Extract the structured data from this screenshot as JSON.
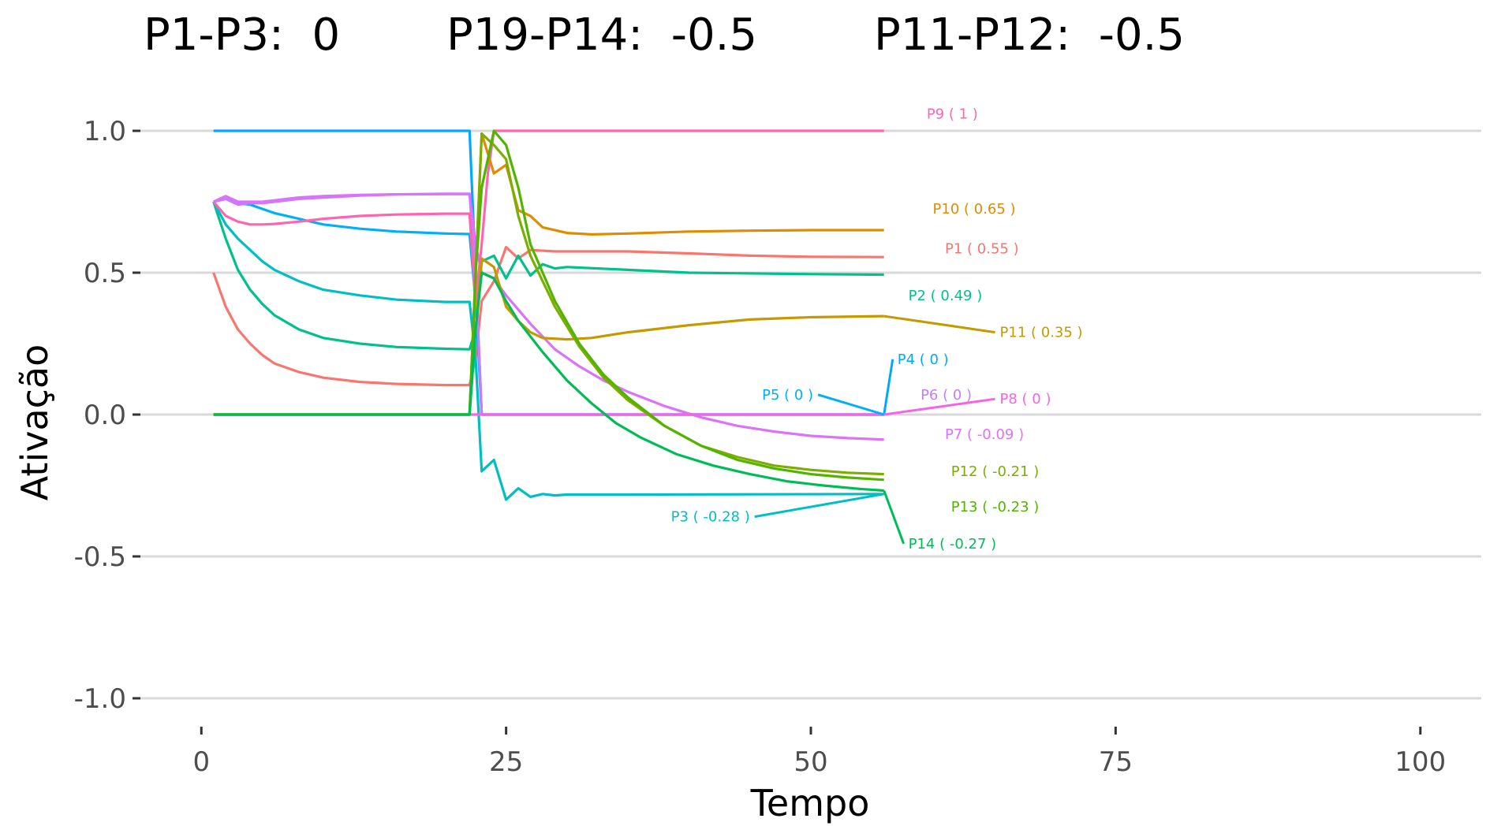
{
  "chart_data": {
    "type": "line",
    "title_parts": [
      "P1-P3:  0",
      "P19-P14:  -0.5",
      "P11-P12:  -0.5"
    ],
    "xlabel": "Tempo",
    "ylabel": "Ativação",
    "xlim": [
      -5,
      105
    ],
    "ylim": [
      -1.1,
      1.1
    ],
    "x_ticks": [
      0,
      25,
      50,
      75,
      100
    ],
    "x_tick_labels": [
      "0",
      "25",
      "50",
      "75",
      "100"
    ],
    "y_ticks": [
      1.0,
      0.5,
      0.0,
      -0.5,
      -1.0
    ],
    "y_tick_labels": [
      "1.0",
      "0.5",
      "0.0",
      "-0.5",
      "-1.0"
    ],
    "grid": "horizontal",
    "series": [
      {
        "name": "P1",
        "label": "P1 ( 0.55 )",
        "color": "#F8766D",
        "label_at": [
          61,
          0.585
        ],
        "connector": false,
        "points": [
          [
            1,
            0.5
          ],
          [
            2,
            0.38
          ],
          [
            3,
            0.3
          ],
          [
            4,
            0.25
          ],
          [
            5,
            0.21
          ],
          [
            6,
            0.18
          ],
          [
            8,
            0.15
          ],
          [
            10,
            0.13
          ],
          [
            13,
            0.115
          ],
          [
            16,
            0.108
          ],
          [
            20,
            0.104
          ],
          [
            22,
            0.104
          ],
          [
            22.5,
            0.2
          ],
          [
            23,
            0.4
          ],
          [
            24,
            0.47
          ],
          [
            25,
            0.59
          ],
          [
            26,
            0.55
          ],
          [
            27,
            0.58
          ],
          [
            29,
            0.575
          ],
          [
            35,
            0.575
          ],
          [
            40,
            0.568
          ],
          [
            45,
            0.56
          ],
          [
            50,
            0.556
          ],
          [
            56,
            0.555
          ]
        ]
      },
      {
        "name": "P2",
        "label": "P2 ( 0.49 )",
        "color": "#00C08B",
        "label_at": [
          58,
          0.42
        ],
        "connector": false,
        "points": [
          [
            1,
            0.75
          ],
          [
            2,
            0.62
          ],
          [
            3,
            0.51
          ],
          [
            4,
            0.44
          ],
          [
            5,
            0.39
          ],
          [
            6,
            0.35
          ],
          [
            8,
            0.3
          ],
          [
            10,
            0.27
          ],
          [
            13,
            0.25
          ],
          [
            16,
            0.238
          ],
          [
            20,
            0.232
          ],
          [
            22,
            0.23
          ],
          [
            22.5,
            0.3
          ],
          [
            23,
            0.54
          ],
          [
            24,
            0.56
          ],
          [
            25,
            0.48
          ],
          [
            26,
            0.56
          ],
          [
            27,
            0.49
          ],
          [
            28,
            0.53
          ],
          [
            29,
            0.515
          ],
          [
            30,
            0.52
          ],
          [
            35,
            0.51
          ],
          [
            40,
            0.5
          ],
          [
            50,
            0.495
          ],
          [
            56,
            0.493
          ]
        ]
      },
      {
        "name": "P3",
        "label": "P3 ( -0.28 )",
        "color": "#00BFC4",
        "label_at": [
          45,
          -0.36
        ],
        "connector": true,
        "points": [
          [
            1,
            0.75
          ],
          [
            2,
            0.67
          ],
          [
            3,
            0.62
          ],
          [
            4,
            0.58
          ],
          [
            5,
            0.54
          ],
          [
            6,
            0.51
          ],
          [
            8,
            0.47
          ],
          [
            10,
            0.44
          ],
          [
            13,
            0.42
          ],
          [
            16,
            0.405
          ],
          [
            20,
            0.397
          ],
          [
            22,
            0.397
          ],
          [
            22.5,
            0.2
          ],
          [
            23,
            -0.2
          ],
          [
            24,
            -0.16
          ],
          [
            25,
            -0.3
          ],
          [
            26,
            -0.26
          ],
          [
            27,
            -0.29
          ],
          [
            28,
            -0.28
          ],
          [
            29,
            -0.285
          ],
          [
            30,
            -0.282
          ],
          [
            35,
            -0.282
          ],
          [
            45,
            -0.281
          ],
          [
            56,
            -0.28
          ]
        ]
      },
      {
        "name": "P4",
        "label": "P4 ( 0 )",
        "color": "#00A9FF",
        "label_at": [
          57.1,
          0.195
        ],
        "connector": true,
        "points": [
          [
            1,
            1.0
          ],
          [
            22,
            1.0
          ],
          [
            22.5,
            0.5
          ],
          [
            23,
            0.0
          ],
          [
            56,
            0.0
          ]
        ]
      },
      {
        "name": "P5",
        "label": "P5 ( 0 )",
        "color": "#00B0F6",
        "label_at": [
          50.2,
          0.07
        ],
        "connector": true,
        "points": [
          [
            1,
            0.75
          ],
          [
            2,
            0.76
          ],
          [
            3,
            0.745
          ],
          [
            4,
            0.74
          ],
          [
            5,
            0.725
          ],
          [
            6,
            0.71
          ],
          [
            8,
            0.69
          ],
          [
            10,
            0.67
          ],
          [
            13,
            0.655
          ],
          [
            16,
            0.645
          ],
          [
            20,
            0.638
          ],
          [
            22,
            0.636
          ],
          [
            22.5,
            0.4
          ],
          [
            23,
            0.0
          ],
          [
            56,
            0.0
          ]
        ]
      },
      {
        "name": "P6",
        "label": "P6 ( 0 )",
        "color": "#C77CFF",
        "label_at": [
          59,
          0.07
        ],
        "connector": false,
        "points": [
          [
            1,
            0.75
          ],
          [
            2,
            0.76
          ],
          [
            3,
            0.74
          ],
          [
            4,
            0.745
          ],
          [
            5,
            0.745
          ],
          [
            6,
            0.75
          ],
          [
            8,
            0.76
          ],
          [
            10,
            0.765
          ],
          [
            13,
            0.772
          ],
          [
            16,
            0.776
          ],
          [
            20,
            0.778
          ],
          [
            22,
            0.778
          ],
          [
            22.5,
            0.5
          ],
          [
            23,
            0.0
          ],
          [
            56,
            0.0
          ]
        ]
      },
      {
        "name": "P7",
        "label": "P7 ( -0.09 )",
        "color": "#DC71FA",
        "label_at": [
          61,
          -0.07
        ],
        "connector": false,
        "points": [
          [
            1,
            0.75
          ],
          [
            2,
            0.77
          ],
          [
            3,
            0.75
          ],
          [
            4,
            0.75
          ],
          [
            5,
            0.75
          ],
          [
            6,
            0.755
          ],
          [
            8,
            0.765
          ],
          [
            10,
            0.77
          ],
          [
            13,
            0.774
          ],
          [
            16,
            0.776
          ],
          [
            20,
            0.777
          ],
          [
            22,
            0.777
          ],
          [
            22.5,
            0.6
          ],
          [
            23,
            0.5
          ],
          [
            24,
            0.48
          ],
          [
            25,
            0.42
          ],
          [
            27,
            0.32
          ],
          [
            29,
            0.23
          ],
          [
            31,
            0.17
          ],
          [
            33,
            0.12
          ],
          [
            35,
            0.08
          ],
          [
            38,
            0.03
          ],
          [
            41,
            -0.01
          ],
          [
            44,
            -0.04
          ],
          [
            47,
            -0.06
          ],
          [
            50,
            -0.075
          ],
          [
            53,
            -0.083
          ],
          [
            56,
            -0.088
          ]
        ]
      },
      {
        "name": "P8",
        "label": "P8 ( 0 )",
        "color": "#F564E3",
        "label_at": [
          65.5,
          0.055
        ],
        "connector": true,
        "points": [
          [
            1,
            0.0
          ],
          [
            22,
            0.0
          ],
          [
            22.5,
            0.0
          ],
          [
            23,
            0.0
          ],
          [
            56,
            0.0
          ]
        ]
      },
      {
        "name": "P9",
        "label": "P9 ( 1 )",
        "color": "#FF64B0",
        "label_at": [
          59.5,
          1.06
        ],
        "connector": false,
        "points": [
          [
            1,
            0.75
          ],
          [
            2,
            0.7
          ],
          [
            3,
            0.68
          ],
          [
            4,
            0.67
          ],
          [
            5,
            0.67
          ],
          [
            6,
            0.672
          ],
          [
            8,
            0.68
          ],
          [
            10,
            0.69
          ],
          [
            13,
            0.7
          ],
          [
            16,
            0.705
          ],
          [
            20,
            0.708
          ],
          [
            22,
            0.708
          ],
          [
            22.5,
            0.4
          ],
          [
            23,
            0.6
          ],
          [
            23.5,
            0.85
          ],
          [
            24,
            1.0
          ],
          [
            56,
            1.0
          ]
        ]
      },
      {
        "name": "P10",
        "label": "P10 ( 0.65 )",
        "color": "#DE8C00",
        "label_at": [
          60,
          0.725
        ],
        "connector": false,
        "points": [
          [
            1,
            0.0
          ],
          [
            22,
            0.0
          ],
          [
            22.5,
            0.5
          ],
          [
            23,
            0.99
          ],
          [
            23.5,
            0.92
          ],
          [
            24,
            0.85
          ],
          [
            25,
            0.88
          ],
          [
            26,
            0.72
          ],
          [
            27,
            0.7
          ],
          [
            28,
            0.66
          ],
          [
            30,
            0.64
          ],
          [
            32,
            0.635
          ],
          [
            35,
            0.638
          ],
          [
            40,
            0.645
          ],
          [
            45,
            0.648
          ],
          [
            50,
            0.65
          ],
          [
            56,
            0.65
          ]
        ]
      },
      {
        "name": "P11",
        "label": "P11 ( 0.35 )",
        "color": "#C49A00",
        "label_at": [
          65.5,
          0.29
        ],
        "connector": true,
        "points": [
          [
            1,
            0.0
          ],
          [
            22,
            0.0
          ],
          [
            22.5,
            0.3
          ],
          [
            23,
            0.55
          ],
          [
            24,
            0.52
          ],
          [
            25,
            0.38
          ],
          [
            26,
            0.33
          ],
          [
            27,
            0.29
          ],
          [
            28,
            0.27
          ],
          [
            30,
            0.265
          ],
          [
            32,
            0.27
          ],
          [
            35,
            0.29
          ],
          [
            40,
            0.315
          ],
          [
            45,
            0.335
          ],
          [
            50,
            0.343
          ],
          [
            56,
            0.347
          ]
        ]
      },
      {
        "name": "P12",
        "label": "P12 ( -0.21 )",
        "color": "#7CAE00",
        "label_at": [
          61.5,
          -0.2
        ],
        "connector": false,
        "points": [
          [
            1,
            0.0
          ],
          [
            22,
            0.0
          ],
          [
            22.5,
            0.5
          ],
          [
            23,
            0.99
          ],
          [
            24,
            0.95
          ],
          [
            25,
            0.9
          ],
          [
            26,
            0.7
          ],
          [
            27,
            0.56
          ],
          [
            29,
            0.38
          ],
          [
            31,
            0.24
          ],
          [
            33,
            0.13
          ],
          [
            35,
            0.05
          ],
          [
            38,
            -0.04
          ],
          [
            41,
            -0.11
          ],
          [
            44,
            -0.15
          ],
          [
            47,
            -0.18
          ],
          [
            50,
            -0.195
          ],
          [
            53,
            -0.205
          ],
          [
            56,
            -0.21
          ]
        ]
      },
      {
        "name": "P13",
        "label": "P13 ( -0.23 )",
        "color": "#53B400",
        "label_at": [
          61.5,
          -0.325
        ],
        "connector": false,
        "points": [
          [
            1,
            0.0
          ],
          [
            22,
            0.0
          ],
          [
            22.5,
            0.5
          ],
          [
            23,
            0.8
          ],
          [
            24,
            1.0
          ],
          [
            25,
            0.95
          ],
          [
            26,
            0.8
          ],
          [
            27,
            0.6
          ],
          [
            29,
            0.4
          ],
          [
            31,
            0.25
          ],
          [
            33,
            0.14
          ],
          [
            35,
            0.06
          ],
          [
            38,
            -0.04
          ],
          [
            41,
            -0.11
          ],
          [
            44,
            -0.16
          ],
          [
            47,
            -0.19
          ],
          [
            50,
            -0.21
          ],
          [
            53,
            -0.222
          ],
          [
            56,
            -0.23
          ]
        ]
      },
      {
        "name": "P14",
        "label": "P14 ( -0.27 )",
        "color": "#00BC56",
        "label_at": [
          58,
          -0.455
        ],
        "connector": true,
        "points": [
          [
            1,
            0.0
          ],
          [
            22,
            0.0
          ],
          [
            22.5,
            0.3
          ],
          [
            23,
            0.5
          ],
          [
            24,
            0.48
          ],
          [
            25,
            0.4
          ],
          [
            26,
            0.33
          ],
          [
            28,
            0.22
          ],
          [
            30,
            0.12
          ],
          [
            32,
            0.04
          ],
          [
            34,
            -0.03
          ],
          [
            36,
            -0.08
          ],
          [
            39,
            -0.14
          ],
          [
            42,
            -0.18
          ],
          [
            45,
            -0.21
          ],
          [
            48,
            -0.235
          ],
          [
            51,
            -0.25
          ],
          [
            54,
            -0.262
          ],
          [
            56,
            -0.268
          ]
        ]
      }
    ]
  }
}
